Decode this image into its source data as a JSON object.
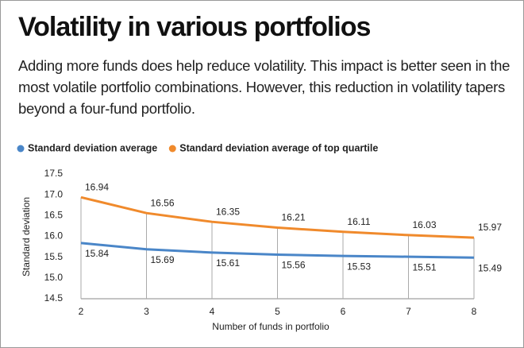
{
  "chart_data": {
    "type": "line",
    "title": "Volatility in various portfolios",
    "subtitle": "Adding more funds does help reduce volatility. This impact is better seen in the most volatile portfolio combinations. However, this reduction in volatility tapers beyond a four-fund portfolio.",
    "x_label": "Number of funds in portfolio",
    "y_label": "Standard deviation",
    "x": [
      2,
      3,
      4,
      5,
      6,
      7,
      8
    ],
    "xlim": [
      2,
      8
    ],
    "xticks": [
      2,
      3,
      4,
      5,
      6,
      7,
      8
    ],
    "ylim": [
      14.5,
      17.5
    ],
    "yticks": [
      14.5,
      {
        "value": 15,
        "label": "15.0"
      },
      15.5,
      {
        "value": 16,
        "label": "16.0"
      },
      16.5,
      {
        "value": 17,
        "label": "17.0"
      },
      17.5
    ],
    "series": [
      {
        "name": "Standard deviation average",
        "color": "#4a86c8",
        "values": [
          15.84,
          15.69,
          15.61,
          15.56,
          15.53,
          15.51,
          15.49
        ]
      },
      {
        "name": "Standard deviation average of top quartile",
        "color": "#f08a2c",
        "values": [
          16.94,
          16.56,
          16.35,
          16.21,
          16.11,
          16.03,
          15.97
        ]
      }
    ]
  }
}
